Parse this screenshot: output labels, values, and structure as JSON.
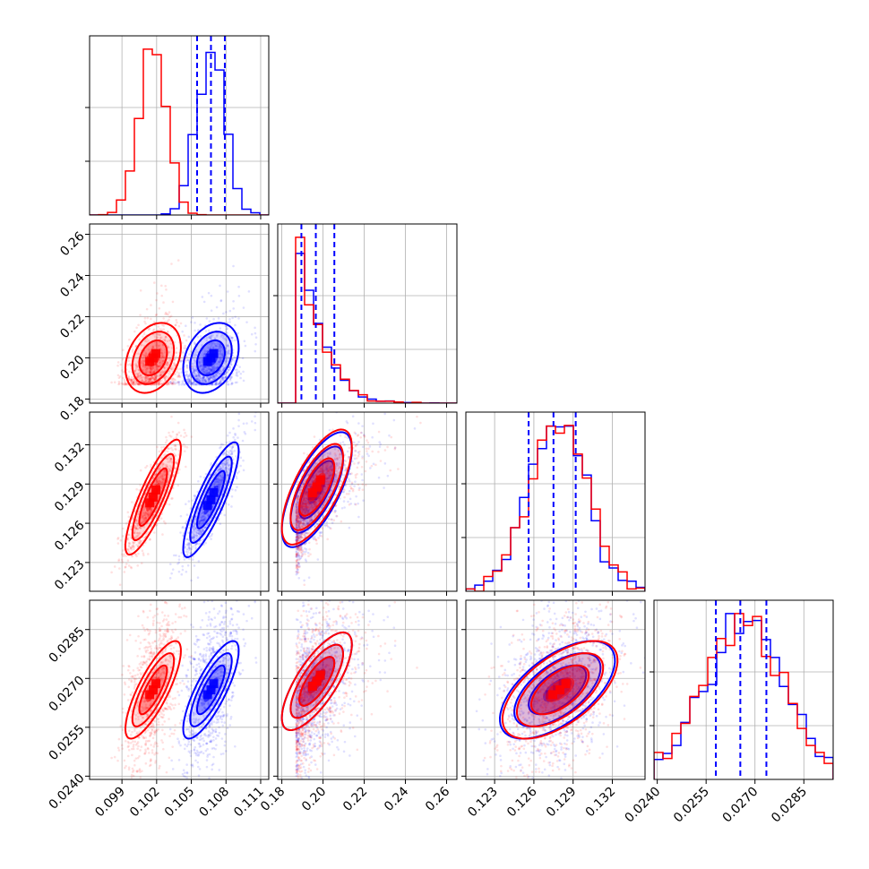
{
  "chart_data": {
    "type": "scatter",
    "title": "",
    "subplot_kind": "corner-plot",
    "grid": true,
    "legend": "none",
    "parameters": [
      {
        "index": 0,
        "range": [
          0.0962,
          0.1117
        ],
        "ticks": [
          0.099,
          0.102,
          0.105,
          0.108,
          0.111
        ],
        "tick_labels": [
          "0.099",
          "0.102",
          "0.105",
          "0.108",
          "0.111"
        ]
      },
      {
        "index": 1,
        "range": [
          0.178,
          0.265
        ],
        "ticks": [
          0.18,
          0.2,
          0.22,
          0.24,
          0.26
        ],
        "tick_labels": [
          "0.18",
          "0.20",
          "0.22",
          "0.24",
          "0.26"
        ]
      },
      {
        "index": 2,
        "range": [
          0.1208,
          0.1345
        ],
        "ticks": [
          0.123,
          0.126,
          0.129,
          0.132
        ],
        "tick_labels": [
          "0.123",
          "0.126",
          "0.129",
          "0.132"
        ]
      },
      {
        "index": 3,
        "range": [
          0.0239,
          0.0294
        ],
        "ticks": [
          0.024,
          0.0255,
          0.027,
          0.0285
        ],
        "tick_labels": [
          "0.0240",
          "0.0255",
          "0.0270",
          "0.0285"
        ]
      }
    ],
    "series": [
      {
        "color": "#ff0000",
        "means": [
          0.1017,
          0.197,
          0.128,
          0.02665
        ],
        "sds": [
          0.0012,
          0.0085,
          0.0022,
          0.00075
        ],
        "corr": [
          [
            1,
            0.3,
            0.85,
            0.8
          ],
          [
            0.3,
            1,
            0.7,
            0.75
          ],
          [
            0.85,
            0.7,
            1,
            0.6
          ],
          [
            0.8,
            0.75,
            0.6,
            1
          ]
        ]
      },
      {
        "color": "#0000ff",
        "means": [
          0.1067,
          0.197,
          0.1278,
          0.02665
        ],
        "sds": [
          0.0012,
          0.0085,
          0.0022,
          0.00075
        ],
        "corr": [
          [
            1,
            0.3,
            0.85,
            0.8
          ],
          [
            0.3,
            1,
            0.7,
            0.75
          ],
          [
            0.85,
            0.7,
            1,
            0.6
          ],
          [
            0.8,
            0.75,
            0.6,
            1
          ]
        ]
      }
    ],
    "quantile_lines": {
      "color": "#0000ff",
      "values": [
        [
          0.1055,
          0.1067,
          0.1079
        ],
        [
          0.1895,
          0.1965,
          0.2055
        ],
        [
          0.1256,
          0.1275,
          0.1292
        ],
        [
          0.0258,
          0.02655,
          0.02735
        ]
      ]
    }
  }
}
